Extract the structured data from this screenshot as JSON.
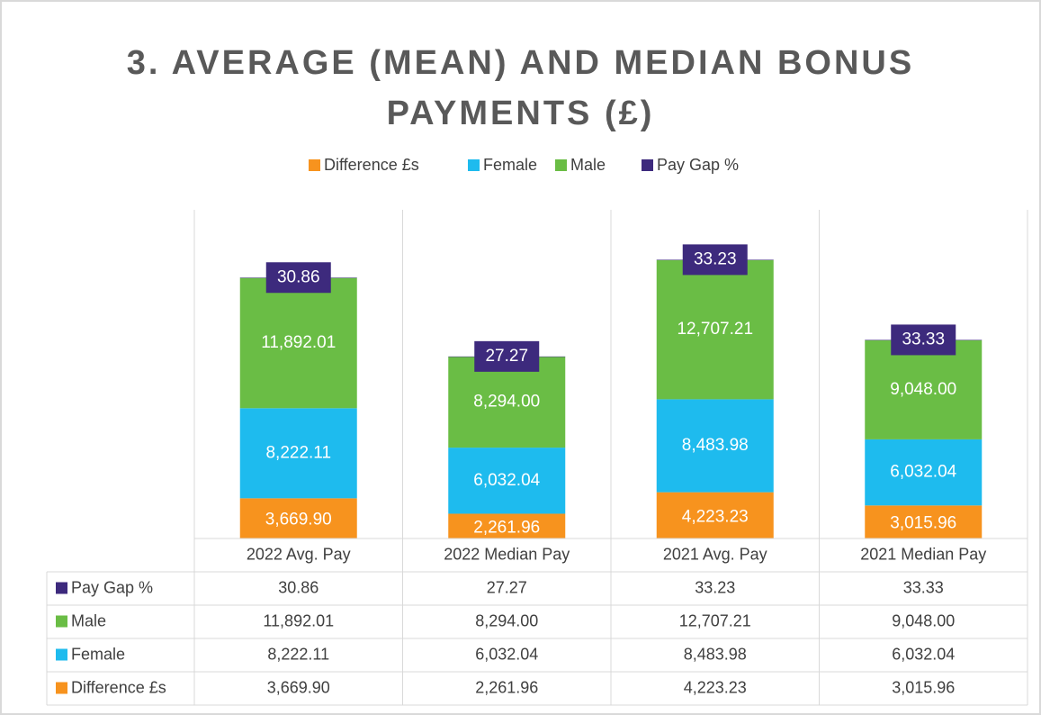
{
  "chart_data": {
    "type": "bar",
    "stacked": true,
    "title": "3. AVERAGE (MEAN) AND MEDIAN BONUS PAYMENTS (£)",
    "categories": [
      "2022 Avg. Pay",
      "2022 Median Pay",
      "2021 Avg. Pay",
      "2021 Median Pay"
    ],
    "series": [
      {
        "name": "Difference £s",
        "color": "#f7931e",
        "values": [
          3669.9,
          2261.96,
          4223.23,
          3015.96
        ],
        "value_labels": [
          "3,669.90",
          "2,261.96",
          "4,223.23",
          "3,015.96"
        ]
      },
      {
        "name": "Female",
        "color": "#1ebbee",
        "values": [
          8222.11,
          6032.04,
          8483.98,
          6032.04
        ],
        "value_labels": [
          "8,222.11",
          "6,032.04",
          "8,483.98",
          "6,032.04"
        ]
      },
      {
        "name": "Male",
        "color": "#6abd45",
        "values": [
          11892.01,
          8294.0,
          12707.21,
          9048.0
        ],
        "value_labels": [
          "11,892.01",
          "8,294.00",
          "12,707.21",
          "9,048.00"
        ]
      },
      {
        "name": "Pay Gap %",
        "color": "#3d2a7d",
        "values": [
          30.86,
          27.27,
          33.23,
          33.33
        ]
      }
    ],
    "ylim": [
      0,
      30000
    ],
    "legend": "top",
    "data_table": true
  }
}
